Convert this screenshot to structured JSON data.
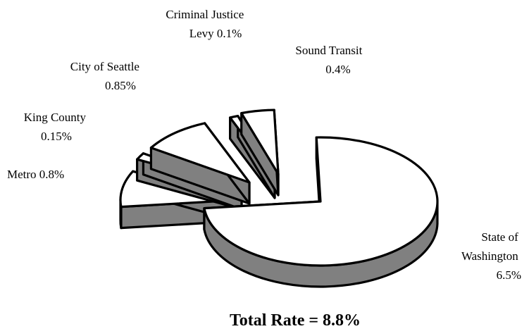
{
  "chart_data": {
    "type": "pie",
    "style": "3d-exploded",
    "footer": "Total Rate = 8.8%",
    "slices": [
      {
        "label_lines": [
          "State of",
          "Washington",
          "6.5%"
        ],
        "value": 6.5,
        "top_color": "#ffffff",
        "side_color": "#808080"
      },
      {
        "label_lines": [
          "Metro 0.8%"
        ],
        "value": 0.8,
        "top_color": "#ffffff",
        "side_color": "#808080"
      },
      {
        "label_lines": [
          "King County",
          "0.15%"
        ],
        "value": 0.15,
        "top_color": "#ffffff",
        "side_color": "#808080"
      },
      {
        "label_lines": [
          "City of Seattle",
          "0.85%"
        ],
        "value": 0.85,
        "top_color": "#ffffff",
        "side_color": "#808080"
      },
      {
        "label_lines": [
          "Criminal Justice",
          "Levy 0.1%"
        ],
        "value": 0.1,
        "top_color": "#ffffff",
        "side_color": "#808080"
      },
      {
        "label_lines": [
          "Sound Transit",
          "0.4%"
        ],
        "value": 0.4,
        "top_color": "#ffffff",
        "side_color": "#808080"
      }
    ]
  }
}
